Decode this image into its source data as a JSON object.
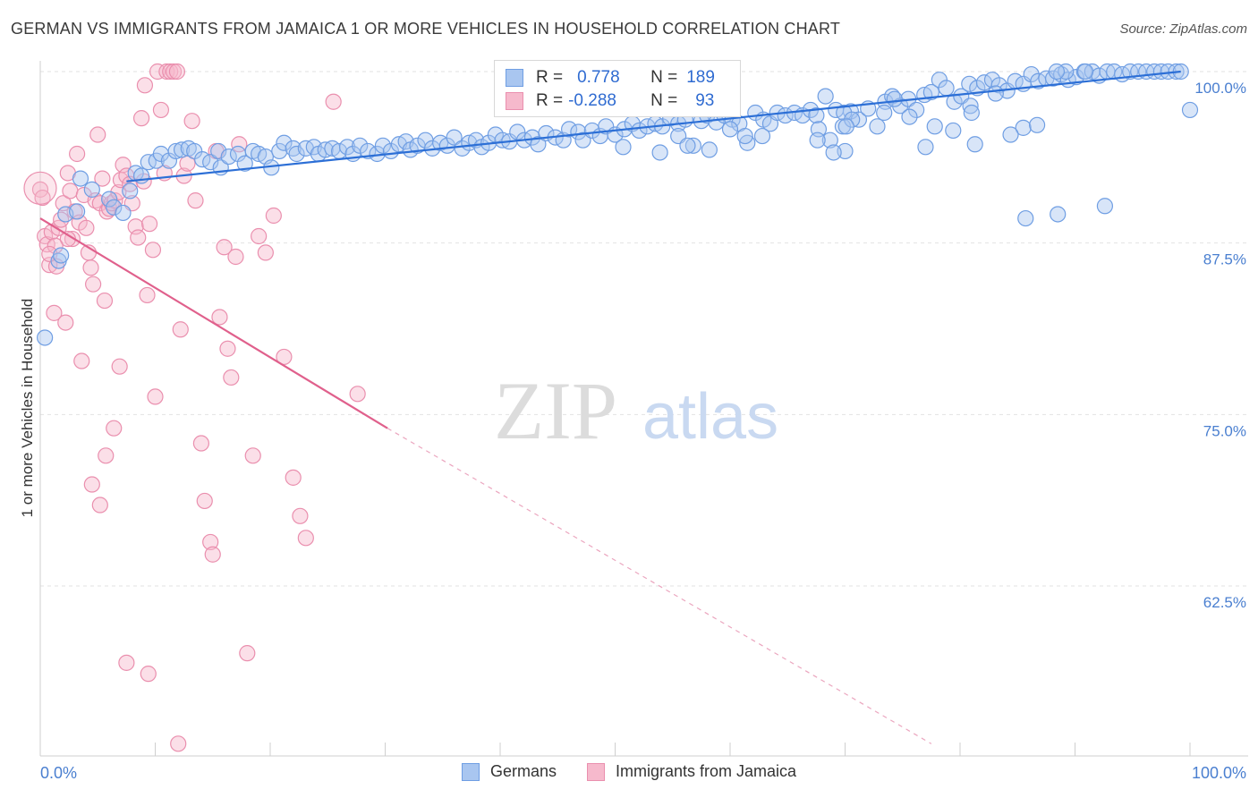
{
  "title": "GERMAN VS IMMIGRANTS FROM JAMAICA 1 OR MORE VEHICLES IN HOUSEHOLD CORRELATION CHART",
  "source": "Source: ZipAtlas.com",
  "watermark": {
    "zip": "ZIP",
    "atlas": "atlas"
  },
  "legend": {
    "series1": {
      "r_label": "R =",
      "r_value": "0.778",
      "n_label": "N =",
      "n_value": "189"
    },
    "series2": {
      "r_label": "R =",
      "r_value": "-0.288",
      "n_label": "N =",
      "n_value": "93"
    }
  },
  "bottom_legend": {
    "series1": "Germans",
    "series2": "Immigrants from Jamaica"
  },
  "colors": {
    "blue_fill": "#a9c6f0",
    "blue_stroke": "#6f9ee3",
    "blue_line": "#2c6fd6",
    "pink_fill": "#f6b9cc",
    "pink_stroke": "#ea8fae",
    "pink_line": "#e0608c",
    "tick": "#4a7fd0"
  },
  "chart_data": {
    "type": "scatter",
    "title": "GERMAN VS IMMIGRANTS FROM JAMAICA 1 OR MORE VEHICLES IN HOUSEHOLD CORRELATION CHART",
    "xlabel": "",
    "ylabel": "1 or more Vehicles in Household",
    "xlim": [
      0,
      100
    ],
    "ylim": [
      51,
      101
    ],
    "x_tick_labels": [
      "0.0%",
      "100.0%"
    ],
    "y_ticks": [
      62.5,
      75.0,
      87.5,
      100.0
    ],
    "y_tick_labels": [
      "62.5%",
      "75.0%",
      "87.5%",
      "100.0%"
    ],
    "grid": true,
    "legend_position": "top-center",
    "series": [
      {
        "name": "Germans",
        "color": "#6f9ee3",
        "r": 0.778,
        "n": 189,
        "trend": {
          "x": [
            7.5,
            99.2
          ],
          "y": [
            92.0,
            100.0
          ]
        },
        "points": [
          [
            0.4,
            80.6
          ],
          [
            1.6,
            86.2
          ],
          [
            1.8,
            86.6
          ],
          [
            2.2,
            89.6
          ],
          [
            3.2,
            89.8
          ],
          [
            3.5,
            92.2
          ],
          [
            4.5,
            91.4
          ],
          [
            6.0,
            90.7
          ],
          [
            6.4,
            90.1
          ],
          [
            7.2,
            89.7
          ],
          [
            7.8,
            91.3
          ],
          [
            8.3,
            92.6
          ],
          [
            8.8,
            92.4
          ],
          [
            9.4,
            93.4
          ],
          [
            10.1,
            93.5
          ],
          [
            10.5,
            94.0
          ],
          [
            11.2,
            93.5
          ],
          [
            11.8,
            94.2
          ],
          [
            12.3,
            94.3
          ],
          [
            12.9,
            94.4
          ],
          [
            13.4,
            94.2
          ],
          [
            14.1,
            93.6
          ],
          [
            14.8,
            93.4
          ],
          [
            15.5,
            94.2
          ],
          [
            15.7,
            93.0
          ],
          [
            16.4,
            93.8
          ],
          [
            17.2,
            94.0
          ],
          [
            17.8,
            93.3
          ],
          [
            18.5,
            94.2
          ],
          [
            19.0,
            94.0
          ],
          [
            19.6,
            93.8
          ],
          [
            20.1,
            93.0
          ],
          [
            20.8,
            94.2
          ],
          [
            21.2,
            94.8
          ],
          [
            22.0,
            94.4
          ],
          [
            22.3,
            94.0
          ],
          [
            23.1,
            94.4
          ],
          [
            23.8,
            94.5
          ],
          [
            24.2,
            94.0
          ],
          [
            24.8,
            94.3
          ],
          [
            25.4,
            94.4
          ],
          [
            26.0,
            94.2
          ],
          [
            26.7,
            94.5
          ],
          [
            27.2,
            94.0
          ],
          [
            27.8,
            94.6
          ],
          [
            28.5,
            94.2
          ],
          [
            29.3,
            94.0
          ],
          [
            29.8,
            94.6
          ],
          [
            30.5,
            94.2
          ],
          [
            31.2,
            94.7
          ],
          [
            31.8,
            94.9
          ],
          [
            32.2,
            94.3
          ],
          [
            32.8,
            94.6
          ],
          [
            33.5,
            95.0
          ],
          [
            34.1,
            94.4
          ],
          [
            34.8,
            94.8
          ],
          [
            35.4,
            94.6
          ],
          [
            36.0,
            95.2
          ],
          [
            36.7,
            94.4
          ],
          [
            37.3,
            94.8
          ],
          [
            37.9,
            95.0
          ],
          [
            38.4,
            94.5
          ],
          [
            39.0,
            94.8
          ],
          [
            39.6,
            95.4
          ],
          [
            40.2,
            95.0
          ],
          [
            40.8,
            94.9
          ],
          [
            41.5,
            95.6
          ],
          [
            42.1,
            95.0
          ],
          [
            42.8,
            95.2
          ],
          [
            43.3,
            94.7
          ],
          [
            44.0,
            95.5
          ],
          [
            44.8,
            95.2
          ],
          [
            45.5,
            95.0
          ],
          [
            46.0,
            95.8
          ],
          [
            46.8,
            95.6
          ],
          [
            47.2,
            95.0
          ],
          [
            48.0,
            95.7
          ],
          [
            48.7,
            95.3
          ],
          [
            49.2,
            96.0
          ],
          [
            50.0,
            95.4
          ],
          [
            50.8,
            95.8
          ],
          [
            51.5,
            96.2
          ],
          [
            52.1,
            95.7
          ],
          [
            52.8,
            96.0
          ],
          [
            53.5,
            96.2
          ],
          [
            54.1,
            96.0
          ],
          [
            54.8,
            96.6
          ],
          [
            55.5,
            96.2
          ],
          [
            56.1,
            96.5
          ],
          [
            56.8,
            94.6
          ],
          [
            57.5,
            96.4
          ],
          [
            58.0,
            96.8
          ],
          [
            58.8,
            96.3
          ],
          [
            59.5,
            96.8
          ],
          [
            60.2,
            96.5
          ],
          [
            60.8,
            96.2
          ],
          [
            61.5,
            94.8
          ],
          [
            62.2,
            97.0
          ],
          [
            62.9,
            96.5
          ],
          [
            63.5,
            96.2
          ],
          [
            64.1,
            97.0
          ],
          [
            64.8,
            96.8
          ],
          [
            65.6,
            97.0
          ],
          [
            66.3,
            96.8
          ],
          [
            67.0,
            97.2
          ],
          [
            67.5,
            96.8
          ],
          [
            68.3,
            98.2
          ],
          [
            68.7,
            95.0
          ],
          [
            69.2,
            97.2
          ],
          [
            69.8,
            96.0
          ],
          [
            70.5,
            97.1
          ],
          [
            71.2,
            96.5
          ],
          [
            72.0,
            97.3
          ],
          [
            72.8,
            96.0
          ],
          [
            73.5,
            97.8
          ],
          [
            74.1,
            98.2
          ],
          [
            74.8,
            97.5
          ],
          [
            75.5,
            98.0
          ],
          [
            76.2,
            97.2
          ],
          [
            76.9,
            98.3
          ],
          [
            77.5,
            98.5
          ],
          [
            78.2,
            99.4
          ],
          [
            78.8,
            98.8
          ],
          [
            79.5,
            97.8
          ],
          [
            80.1,
            98.2
          ],
          [
            80.8,
            99.1
          ],
          [
            81.5,
            98.8
          ],
          [
            82.1,
            99.2
          ],
          [
            82.8,
            99.4
          ],
          [
            83.4,
            99.0
          ],
          [
            84.1,
            98.6
          ],
          [
            84.8,
            99.3
          ],
          [
            85.5,
            99.1
          ],
          [
            86.2,
            99.8
          ],
          [
            86.8,
            99.3
          ],
          [
            87.5,
            99.5
          ],
          [
            88.1,
            99.5
          ],
          [
            88.8,
            99.8
          ],
          [
            89.4,
            99.4
          ],
          [
            90.1,
            99.6
          ],
          [
            90.8,
            100.0
          ],
          [
            91.5,
            100.0
          ],
          [
            92.1,
            99.7
          ],
          [
            92.8,
            100.0
          ],
          [
            93.4,
            100.0
          ],
          [
            94.1,
            99.8
          ],
          [
            94.8,
            100.0
          ],
          [
            95.5,
            100.0
          ],
          [
            96.2,
            100.0
          ],
          [
            96.9,
            100.0
          ],
          [
            97.5,
            100.0
          ],
          [
            98.1,
            100.0
          ],
          [
            98.8,
            100.0
          ],
          [
            99.2,
            100.0
          ],
          [
            100.0,
            97.2
          ],
          [
            61.3,
            95.3
          ],
          [
            70.0,
            94.2
          ],
          [
            77.8,
            96.0
          ],
          [
            81.3,
            94.7
          ],
          [
            74.3,
            98.0
          ],
          [
            69.9,
            97.0
          ],
          [
            79.4,
            95.7
          ],
          [
            85.5,
            95.9
          ],
          [
            86.7,
            96.1
          ],
          [
            80.9,
            97.5
          ],
          [
            75.6,
            96.7
          ],
          [
            83.1,
            98.4
          ],
          [
            89.2,
            100.0
          ],
          [
            88.4,
            100.0
          ],
          [
            90.9,
            100.0
          ],
          [
            84.4,
            95.4
          ],
          [
            81.0,
            97.0
          ],
          [
            77.0,
            94.5
          ],
          [
            70.6,
            96.5
          ],
          [
            73.4,
            97.0
          ],
          [
            70.1,
            96.0
          ],
          [
            67.7,
            95.8
          ],
          [
            62.8,
            95.3
          ],
          [
            85.7,
            89.3
          ],
          [
            88.5,
            89.6
          ],
          [
            92.6,
            90.2
          ],
          [
            69.0,
            94.1
          ],
          [
            67.6,
            95.0
          ],
          [
            50.7,
            94.5
          ],
          [
            53.9,
            94.1
          ],
          [
            55.5,
            95.3
          ],
          [
            56.3,
            94.6
          ],
          [
            58.2,
            94.3
          ],
          [
            60.0,
            95.8
          ]
        ]
      },
      {
        "name": "Immigrants from Jamaica",
        "color": "#ea8fae",
        "r": -0.288,
        "n": 93,
        "trend": {
          "x": [
            0,
            30.2
          ],
          "y": [
            89.3,
            74.0
          ]
        },
        "trend_dashed": {
          "x": [
            30.2,
            77.5
          ],
          "y": [
            74.0,
            51.0
          ]
        },
        "points": [
          [
            0.0,
            91.4
          ],
          [
            0.2,
            90.8
          ],
          [
            0.4,
            88.0
          ],
          [
            0.6,
            87.4
          ],
          [
            0.8,
            85.9
          ],
          [
            1.0,
            88.3
          ],
          [
            1.2,
            82.4
          ],
          [
            1.4,
            85.8
          ],
          [
            1.6,
            88.6
          ],
          [
            1.8,
            89.2
          ],
          [
            2.0,
            90.4
          ],
          [
            2.2,
            81.7
          ],
          [
            2.4,
            92.6
          ],
          [
            2.6,
            91.3
          ],
          [
            2.8,
            87.8
          ],
          [
            3.0,
            89.8
          ],
          [
            3.2,
            94.0
          ],
          [
            3.4,
            89.0
          ],
          [
            3.6,
            78.9
          ],
          [
            3.8,
            91.0
          ],
          [
            4.0,
            88.6
          ],
          [
            4.2,
            86.8
          ],
          [
            4.4,
            85.7
          ],
          [
            4.6,
            84.5
          ],
          [
            4.8,
            90.6
          ],
          [
            5.0,
            95.4
          ],
          [
            5.2,
            90.4
          ],
          [
            5.4,
            92.2
          ],
          [
            5.6,
            83.3
          ],
          [
            5.8,
            89.8
          ],
          [
            6.0,
            90.0
          ],
          [
            6.2,
            90.4
          ],
          [
            6.5,
            90.6
          ],
          [
            6.8,
            91.2
          ],
          [
            7.0,
            92.1
          ],
          [
            7.2,
            93.2
          ],
          [
            7.5,
            92.4
          ],
          [
            7.8,
            91.8
          ],
          [
            8.0,
            90.4
          ],
          [
            8.3,
            88.7
          ],
          [
            8.5,
            87.9
          ],
          [
            8.8,
            96.6
          ],
          [
            9.0,
            92.0
          ],
          [
            9.3,
            83.7
          ],
          [
            9.5,
            88.9
          ],
          [
            9.8,
            87.0
          ],
          [
            10.0,
            76.3
          ],
          [
            10.2,
            100.0
          ],
          [
            10.5,
            97.2
          ],
          [
            10.8,
            92.6
          ],
          [
            11.0,
            100.0
          ],
          [
            11.3,
            100.0
          ],
          [
            11.6,
            100.0
          ],
          [
            11.9,
            100.0
          ],
          [
            12.2,
            81.2
          ],
          [
            12.5,
            92.4
          ],
          [
            12.8,
            93.3
          ],
          [
            13.2,
            96.4
          ],
          [
            13.5,
            90.6
          ],
          [
            14.0,
            72.9
          ],
          [
            14.3,
            68.7
          ],
          [
            14.8,
            65.7
          ],
          [
            15.0,
            64.8
          ],
          [
            15.3,
            94.2
          ],
          [
            15.6,
            82.1
          ],
          [
            16.0,
            87.2
          ],
          [
            16.3,
            79.8
          ],
          [
            16.6,
            77.7
          ],
          [
            17.0,
            86.5
          ],
          [
            17.3,
            94.7
          ],
          [
            18.0,
            57.6
          ],
          [
            18.5,
            72.0
          ],
          [
            19.0,
            88.0
          ],
          [
            19.6,
            86.8
          ],
          [
            20.3,
            89.5
          ],
          [
            21.2,
            79.2
          ],
          [
            22.0,
            70.4
          ],
          [
            22.6,
            67.6
          ],
          [
            23.1,
            66.0
          ],
          [
            25.5,
            97.8
          ],
          [
            27.6,
            76.5
          ],
          [
            12.0,
            51.0
          ],
          [
            9.4,
            56.1
          ],
          [
            7.5,
            56.9
          ],
          [
            6.4,
            74.0
          ],
          [
            6.9,
            78.5
          ],
          [
            5.7,
            72.0
          ],
          [
            5.2,
            68.4
          ],
          [
            4.5,
            69.9
          ],
          [
            2.4,
            87.8
          ],
          [
            1.3,
            87.3
          ],
          [
            0.8,
            86.7
          ],
          [
            9.1,
            99.0
          ]
        ]
      }
    ]
  }
}
